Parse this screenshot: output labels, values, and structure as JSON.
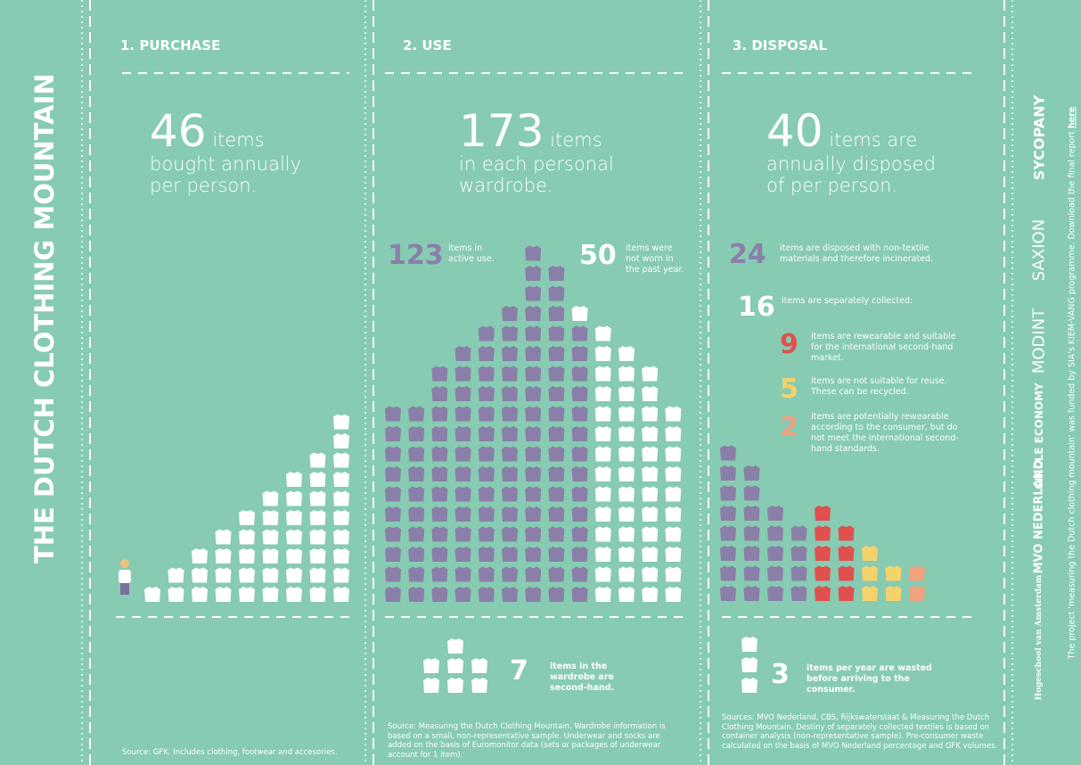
{
  "title": "THE DUTCH CLOTHING MOUNTAIN",
  "purchase": {
    "heading": "1. PURCHASE",
    "number": 46,
    "unit": "items",
    "description": "bought annually per person.",
    "color": "#ffffff",
    "source": "Source: GFK. Includes clothing, footwear and accesories."
  },
  "use": {
    "heading": "2. USE",
    "number": 173,
    "unit": "items",
    "description": "in each personal wardrobe.",
    "breakdown": [
      {
        "number": 123,
        "text": "items in active use.",
        "color": "#8a7fa8"
      },
      {
        "number": 50,
        "text": "items were not worn in the past year.",
        "color": "#ffffff"
      }
    ],
    "second_hand": {
      "number": 7,
      "text": "items in the wardrobe are second-hand.",
      "color": "#ffffff"
    },
    "source": "Source: Measuring the Dutch Clothing Mountain. Wardrobe information is based on a small, non-representative sample. Underwear and socks are added on the basis of Euromonitor data (sets or packages of underwear account for 1 item)."
  },
  "disposal": {
    "heading": "3. DISPOSAL",
    "number": 40,
    "unit": "items are",
    "description": "annually disposed of per person.",
    "incinerated": {
      "number": 24,
      "text": "items are disposed with non-textile materials and therefore incinerated.",
      "color": "#8a7fa8"
    },
    "collected": {
      "number": 16,
      "text": "items are separately collected:"
    },
    "collected_breakdown": [
      {
        "number": 9,
        "text": "items are rewearable and suitable for the international second-hand market.",
        "color": "#e0504f"
      },
      {
        "number": 5,
        "text": "items are not suitable for reuse. These can be recycled.",
        "color": "#f5d26a"
      },
      {
        "number": 2,
        "text": "items are potentially rewearable according to the consumer, but do not meet the international second-hand standards.",
        "color": "#f0a27e"
      }
    ],
    "wasted": {
      "number": 3,
      "text": "items per year are wasted before arriving to the consumer.",
      "color": "#ffffff"
    },
    "source": "Sources: MVO Nederland, CBS, Rijkswaterstaat & Measuring the Dutch Clothing Mountain. Destiny of separately collected textiles is based on container analysis (non-representative sample). Pre-consumer waste calculated on the basis of MVO Nederland percentage and GFK volumes."
  },
  "partners": [
    "SYCOPANY",
    "SAXION",
    "MODINT",
    "CIRCLE ECONOMY",
    "MVO NEDERLAND",
    "Hogeschool van Amsterdam"
  ],
  "footer": "The project 'measuring the Dutch clothing mountain' was funded by SIA's KIEM-VANG programme. Download the final report",
  "footer_link": "here"
}
